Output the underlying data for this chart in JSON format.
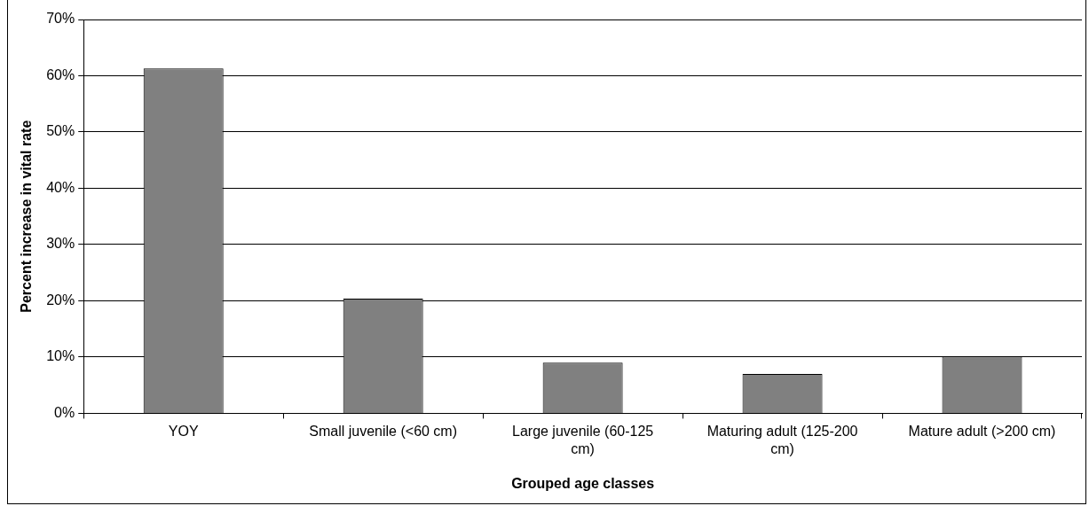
{
  "chart_data": {
    "type": "bar",
    "xlabel": "Grouped age classes",
    "ylabel": "Percent increase in vital rate",
    "categories": [
      "YOY",
      "Small juvenile (<60 cm)",
      "Large juvenile (60-125 cm)",
      "Maturing adult (125-200 cm)",
      "Mature adult (>200 cm)"
    ],
    "values": [
      61.3,
      20.4,
      9.0,
      7.0,
      10.1
    ],
    "color": "#808080",
    "ylim": [
      0,
      70
    ],
    "yticks": [
      {
        "value": 0,
        "label": "0%"
      },
      {
        "value": 10,
        "label": "10%"
      },
      {
        "value": 20,
        "label": "20%"
      },
      {
        "value": 30,
        "label": "30%"
      },
      {
        "value": 40,
        "label": "40%"
      },
      {
        "value": 50,
        "label": "50%"
      },
      {
        "value": 60,
        "label": "60%"
      },
      {
        "value": 70,
        "label": "70%"
      }
    ],
    "grid": "y",
    "legend": false
  }
}
